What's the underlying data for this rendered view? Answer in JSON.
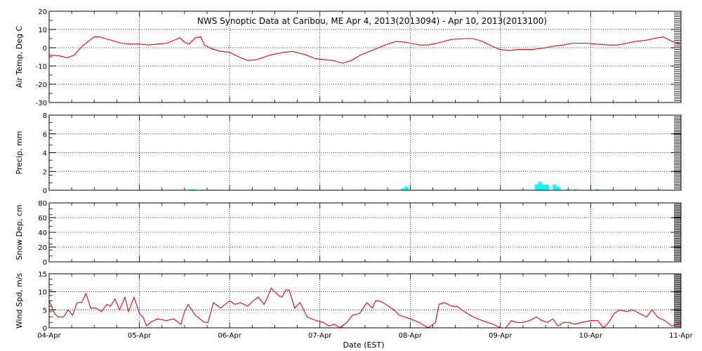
{
  "title": "NWS Synoptic Data at Caribou, ME   Apr  4, 2013(2013094) - Apr 10, 2013(2013100)",
  "xlabel": "Date (EST)",
  "x_ticks": [
    "04-Apr",
    "05-Apr",
    "06-Apr",
    "07-Apr",
    "08-Apr",
    "09-Apr",
    "10-Apr",
    "11-Apr"
  ],
  "colors": {
    "line": "#e8000b",
    "bar": "#00ffff",
    "axis": "#000000",
    "grid": "#000000"
  },
  "chart_data": [
    {
      "type": "line",
      "ylabel": "Air Temp, Deg C",
      "ylim": [
        -30,
        20
      ],
      "yticks": [
        -30,
        -20,
        -10,
        0,
        10,
        20
      ],
      "grid": true,
      "x_unit": "days since 04-Apr 00:00",
      "series": [
        {
          "x": [
            0,
            0.12,
            0.2,
            0.28,
            0.35,
            0.42,
            0.5,
            0.55,
            0.62,
            0.7,
            0.8,
            0.9,
            1.0,
            1.1,
            1.2,
            1.3,
            1.38,
            1.45,
            1.5,
            1.55,
            1.62,
            1.68,
            1.72,
            1.8,
            1.9,
            2.0,
            2.1,
            2.2,
            2.3,
            2.45,
            2.6,
            2.7,
            2.85,
            2.95,
            3.05,
            3.15,
            3.25,
            3.35,
            3.45,
            3.55,
            3.65,
            3.75,
            3.85,
            3.95,
            4.0,
            4.1,
            4.2,
            4.3,
            4.45,
            4.6,
            4.7,
            4.8,
            4.9,
            5.0,
            5.1,
            5.2,
            5.35,
            5.5,
            5.6,
            5.7,
            5.8,
            5.95,
            6.05,
            6.2,
            6.3,
            6.4,
            6.5,
            6.6,
            6.7,
            6.8,
            6.9,
            7.0
          ],
          "y": [
            -4,
            -4.5,
            -5.5,
            -4,
            0,
            3,
            6,
            6,
            5,
            4,
            2.5,
            2,
            2,
            1.5,
            2,
            2.5,
            4,
            5.5,
            3,
            2,
            5.5,
            6,
            1.5,
            -0.5,
            -2,
            -2.5,
            -5,
            -7,
            -6.5,
            -4,
            -2.5,
            -2,
            -4,
            -6,
            -6.5,
            -7,
            -8.5,
            -7,
            -4,
            -2,
            0,
            2,
            3.5,
            3,
            2.5,
            1.5,
            1.5,
            2.5,
            4.5,
            5,
            5,
            3.5,
            1,
            -1,
            -1.5,
            -1,
            -1,
            0,
            1,
            1.5,
            2.5,
            2.5,
            2,
            1.5,
            1.5,
            2.5,
            3.5,
            4,
            5,
            6,
            3.5,
            2
          ]
        }
      ]
    },
    {
      "type": "bar",
      "ylabel": "Precip, mm",
      "ylim": [
        0,
        8
      ],
      "yticks": [
        0,
        2,
        4,
        6,
        8
      ],
      "grid": true,
      "x_unit": "days since 04-Apr 00:00",
      "series": [
        {
          "x": [
            1.54,
            1.58,
            3.9,
            3.94,
            5.38,
            5.42,
            5.46,
            5.5,
            5.58,
            5.62,
            5.73,
            5.81,
            6.05
          ],
          "y": [
            0.1,
            0.1,
            0.2,
            0.4,
            0.6,
            0.9,
            0.6,
            0.6,
            0.6,
            0.4,
            0.1,
            0.1,
            0.1
          ]
        }
      ]
    },
    {
      "type": "line",
      "ylabel": "Snow Dep, cm",
      "ylim": [
        0,
        80
      ],
      "yticks": [
        0,
        20,
        40,
        60,
        80
      ],
      "grid": true,
      "x_unit": "days since 04-Apr 00:00",
      "series": [
        {
          "x": [],
          "y": []
        }
      ]
    },
    {
      "type": "line",
      "ylabel": "Wind Spd, m/s",
      "ylim": [
        0,
        15
      ],
      "yticks": [
        0,
        5,
        10,
        15
      ],
      "grid": true,
      "x_unit": "days since 04-Apr 00:00",
      "series": [
        {
          "x": [
            0,
            0.06,
            0.1,
            0.16,
            0.21,
            0.26,
            0.31,
            0.36,
            0.41,
            0.46,
            0.52,
            0.58,
            0.64,
            0.68,
            0.73,
            0.78,
            0.84,
            0.88,
            0.94,
            1.0,
            1.04,
            1.08,
            1.12,
            1.2,
            1.3,
            1.38,
            1.46,
            1.5,
            1.54,
            1.62,
            1.67,
            1.72,
            1.76,
            1.82,
            1.9,
            2.0,
            2.06,
            2.12,
            2.2,
            2.26,
            2.32,
            2.38,
            2.42,
            2.46,
            2.54,
            2.58,
            2.62,
            2.66,
            2.72,
            2.78,
            2.86,
            2.96,
            3.04,
            3.1,
            3.16,
            3.22,
            3.3,
            3.36,
            3.44,
            3.52,
            3.58,
            3.62,
            3.66,
            3.7,
            3.76,
            3.82,
            3.88,
            3.94,
            4.0,
            4.1,
            4.2,
            4.28,
            4.32,
            4.38,
            4.46,
            4.52,
            4.6,
            4.7,
            4.8,
            4.86,
            4.92,
            5.0,
            5.06,
            5.12,
            5.18,
            5.24,
            5.32,
            5.4,
            5.46,
            5.52,
            5.58,
            5.64,
            5.7,
            5.76,
            5.82,
            5.9,
            6.0,
            6.08,
            6.14,
            6.2,
            6.26,
            6.32,
            6.4,
            6.46,
            6.54,
            6.62,
            6.68,
            6.74,
            6.82,
            6.9,
            6.96,
            7.0
          ],
          "y": [
            7.5,
            4,
            3,
            3,
            5,
            3.5,
            7,
            7,
            9.5,
            5.5,
            5.5,
            4.5,
            6.5,
            6,
            8,
            5,
            8.5,
            4.5,
            8.5,
            4,
            3,
            0.5,
            1.5,
            2.5,
            2,
            2.5,
            1,
            4.5,
            6.5,
            3.5,
            2.5,
            1.5,
            1.5,
            7,
            5.5,
            7.5,
            6.5,
            7,
            6,
            7.5,
            8.5,
            6.5,
            8.5,
            11,
            9,
            8.5,
            10.5,
            10.5,
            5.5,
            7,
            3,
            2,
            1.5,
            0.5,
            1,
            0,
            1.5,
            3.5,
            4,
            7,
            5.5,
            7.5,
            7.5,
            7,
            6,
            5,
            3.5,
            3,
            2.5,
            1.5,
            0,
            1.5,
            6.5,
            7,
            6,
            6,
            4.5,
            3,
            2,
            1.5,
            1,
            0,
            0,
            2,
            1.5,
            1.5,
            2,
            3,
            2,
            1.5,
            2.5,
            0.5,
            1.5,
            1.5,
            1,
            1.5,
            2,
            2,
            0,
            1.5,
            4,
            5,
            4.5,
            5,
            4,
            3,
            5,
            3,
            2,
            0.5,
            1,
            1.5
          ]
        }
      ]
    }
  ]
}
